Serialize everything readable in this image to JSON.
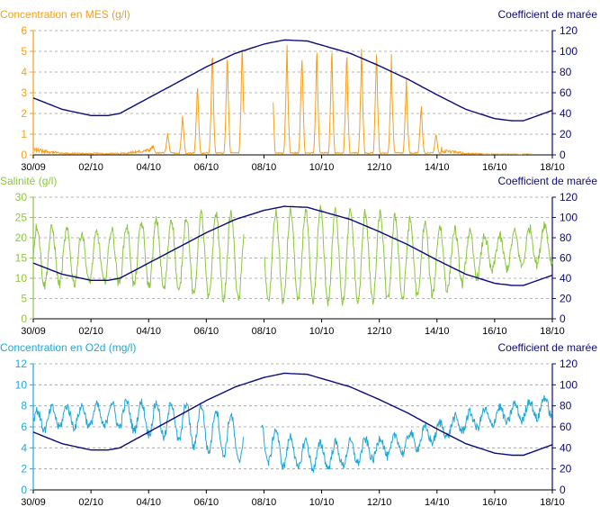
{
  "chart_data": [
    {
      "type": "line",
      "title": "",
      "xlabel": "",
      "x_ticks": [
        "30/09",
        "02/10",
        "04/10",
        "06/10",
        "08/10",
        "10/10",
        "12/10",
        "14/10",
        "16/10",
        "18/10"
      ],
      "xlim": [
        "30/09",
        "18/10"
      ],
      "ylabel_left": "Concentration en MES (g/l)",
      "ylabel_right": "Coefficient de marée",
      "ylim_left": [
        0,
        6
      ],
      "ylim_right": [
        0,
        120
      ],
      "yticks_left": [
        0,
        1,
        2,
        3,
        4,
        5,
        6
      ],
      "yticks_right": [
        0,
        20,
        40,
        60,
        80,
        100,
        120
      ],
      "grid": "horizontal dashed",
      "series": [
        {
          "axis": "left",
          "color": "#f5a01a",
          "style": "semidiurnal peaks",
          "gaps_days": [
            [
              7.3,
              8.3
            ],
            [
              17.3,
              18.0
            ]
          ],
          "envelope_points": [
            [
              0,
              0.4
            ],
            [
              1,
              0.1
            ],
            [
              2,
              0.1
            ],
            [
              3,
              0.1
            ],
            [
              4,
              0.3
            ],
            [
              5,
              1.5
            ],
            [
              5.6,
              3.5
            ],
            [
              6,
              5.6
            ],
            [
              7,
              5.6
            ],
            [
              8,
              5.6
            ],
            [
              9,
              5.6
            ],
            [
              10,
              5.6
            ],
            [
              11,
              5.6
            ],
            [
              12,
              5.6
            ],
            [
              13,
              3.8
            ],
            [
              13.7,
              2.0
            ],
            [
              14.2,
              0.3
            ],
            [
              15,
              0.1
            ],
            [
              16,
              0.05
            ],
            [
              17,
              0.05
            ],
            [
              18,
              0.05
            ]
          ]
        },
        {
          "axis": "right",
          "color": "#0a0a7a",
          "style": "smooth",
          "points": [
            [
              0,
              55
            ],
            [
              1,
              44
            ],
            [
              2,
              38
            ],
            [
              2.6,
              38
            ],
            [
              3,
              40
            ],
            [
              4,
              55
            ],
            [
              5,
              70
            ],
            [
              6,
              85
            ],
            [
              7,
              98
            ],
            [
              8,
              107
            ],
            [
              8.7,
              111
            ],
            [
              9.5,
              110
            ],
            [
              10,
              106
            ],
            [
              11,
              98
            ],
            [
              12,
              86
            ],
            [
              13,
              73
            ],
            [
              14,
              58
            ],
            [
              15,
              44
            ],
            [
              16,
              35
            ],
            [
              16.6,
              33
            ],
            [
              17,
              33
            ],
            [
              18,
              43
            ]
          ]
        }
      ]
    },
    {
      "type": "line",
      "title": "",
      "xlabel": "",
      "x_ticks": [
        "30/09",
        "02/10",
        "04/10",
        "06/10",
        "08/10",
        "10/10",
        "12/10",
        "14/10",
        "16/10",
        "18/10"
      ],
      "xlim": [
        "30/09",
        "18/10"
      ],
      "ylabel_left": "Salinité (g/l)",
      "ylabel_right": "Coefficient de marée",
      "ylim_left": [
        0,
        30
      ],
      "ylim_right": [
        0,
        120
      ],
      "yticks_left": [
        0,
        5,
        10,
        15,
        20,
        25,
        30
      ],
      "yticks_right": [
        0,
        20,
        40,
        60,
        80,
        100,
        120
      ],
      "grid": "horizontal dashed",
      "series": [
        {
          "axis": "left",
          "color": "#8cc63f",
          "style": "semidiurnal oscillation",
          "gaps_days": [
            [
              7.3,
              8.0
            ]
          ],
          "low_envelope": [
            [
              0,
              8
            ],
            [
              2,
              9
            ],
            [
              4,
              8
            ],
            [
              6,
              5
            ],
            [
              8,
              4
            ],
            [
              10,
              4
            ],
            [
              12,
              4
            ],
            [
              14,
              6
            ],
            [
              16,
              12
            ],
            [
              18,
              14
            ]
          ],
          "high_envelope": [
            [
              0,
              23
            ],
            [
              2,
              21
            ],
            [
              4,
              24
            ],
            [
              6,
              26
            ],
            [
              8,
              26
            ],
            [
              10,
              27
            ],
            [
              12,
              26
            ],
            [
              14,
              23
            ],
            [
              16,
              20
            ],
            [
              18,
              24
            ]
          ]
        },
        {
          "axis": "right",
          "color": "#0a0a7a",
          "style": "smooth",
          "points": [
            [
              0,
              55
            ],
            [
              1,
              44
            ],
            [
              2,
              38
            ],
            [
              2.6,
              38
            ],
            [
              3,
              40
            ],
            [
              4,
              55
            ],
            [
              5,
              70
            ],
            [
              6,
              85
            ],
            [
              7,
              98
            ],
            [
              8,
              107
            ],
            [
              8.7,
              111
            ],
            [
              9.5,
              110
            ],
            [
              10,
              106
            ],
            [
              11,
              98
            ],
            [
              12,
              86
            ],
            [
              13,
              73
            ],
            [
              14,
              58
            ],
            [
              15,
              44
            ],
            [
              16,
              35
            ],
            [
              16.6,
              33
            ],
            [
              17,
              33
            ],
            [
              18,
              43
            ]
          ]
        }
      ]
    },
    {
      "type": "line",
      "title": "",
      "xlabel": "",
      "x_ticks": [
        "30/09",
        "02/10",
        "04/10",
        "06/10",
        "08/10",
        "10/10",
        "12/10",
        "14/10",
        "16/10",
        "18/10"
      ],
      "xlim": [
        "30/09",
        "18/10"
      ],
      "ylabel_left": "Concentration en O2d (mg/l)",
      "ylabel_right": "Coefficient de marée",
      "ylim_left": [
        0,
        12
      ],
      "ylim_right": [
        0,
        120
      ],
      "yticks_left": [
        0,
        2,
        4,
        6,
        8,
        10,
        12
      ],
      "yticks_right": [
        0,
        20,
        40,
        60,
        80,
        100,
        120
      ],
      "grid": "horizontal dashed",
      "series": [
        {
          "axis": "left",
          "color": "#1ea8d8",
          "style": "noisy oscillation",
          "gaps_days": [
            [
              7.3,
              7.9
            ]
          ],
          "mean_points": [
            [
              0,
              6.5
            ],
            [
              1,
              7.0
            ],
            [
              2,
              7.0
            ],
            [
              3,
              7.2
            ],
            [
              4,
              6.8
            ],
            [
              5,
              6.5
            ],
            [
              6,
              5.8
            ],
            [
              7,
              5.0
            ],
            [
              7.3,
              4.0
            ],
            [
              8,
              4.5
            ],
            [
              9,
              3.5
            ],
            [
              10,
              3.2
            ],
            [
              11,
              3.5
            ],
            [
              12,
              4.0
            ],
            [
              13,
              4.5
            ],
            [
              14,
              5.5
            ],
            [
              15,
              6.5
            ],
            [
              16,
              7.0
            ],
            [
              17,
              7.5
            ],
            [
              18,
              8.0
            ]
          ],
          "amplitude_points": [
            [
              0,
              1.0
            ],
            [
              2,
              1.0
            ],
            [
              4,
              1.5
            ],
            [
              6,
              2.2
            ],
            [
              8,
              1.8
            ],
            [
              10,
              1.2
            ],
            [
              12,
              1.0
            ],
            [
              14,
              0.8
            ],
            [
              16,
              0.8
            ],
            [
              18,
              1.0
            ]
          ]
        },
        {
          "axis": "right",
          "color": "#0a0a7a",
          "style": "smooth",
          "points": [
            [
              0,
              55
            ],
            [
              1,
              44
            ],
            [
              2,
              38
            ],
            [
              2.6,
              38
            ],
            [
              3,
              40
            ],
            [
              4,
              55
            ],
            [
              5,
              70
            ],
            [
              6,
              85
            ],
            [
              7,
              98
            ],
            [
              8,
              107
            ],
            [
              8.7,
              111
            ],
            [
              9.5,
              110
            ],
            [
              10,
              106
            ],
            [
              11,
              98
            ],
            [
              12,
              86
            ],
            [
              13,
              73
            ],
            [
              14,
              58
            ],
            [
              15,
              44
            ],
            [
              16,
              35
            ],
            [
              16.6,
              33
            ],
            [
              17,
              33
            ],
            [
              18,
              43
            ]
          ]
        }
      ]
    }
  ]
}
